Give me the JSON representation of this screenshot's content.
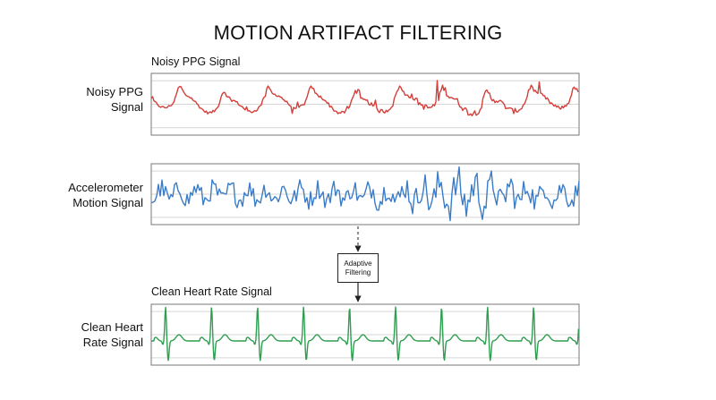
{
  "title": "MOTION ARTIFACT FILTERING",
  "panels": [
    {
      "caption": "Noisy PPG Signal",
      "label": "Noisy PPG Signal"
    },
    {
      "label": "Accelerometer Motion Signal"
    },
    {
      "caption": "Clean Heart Rate Signal",
      "label": "Clean Heart Rate Signal"
    }
  ],
  "filter": {
    "label": "Adaptive Filtering"
  }
}
